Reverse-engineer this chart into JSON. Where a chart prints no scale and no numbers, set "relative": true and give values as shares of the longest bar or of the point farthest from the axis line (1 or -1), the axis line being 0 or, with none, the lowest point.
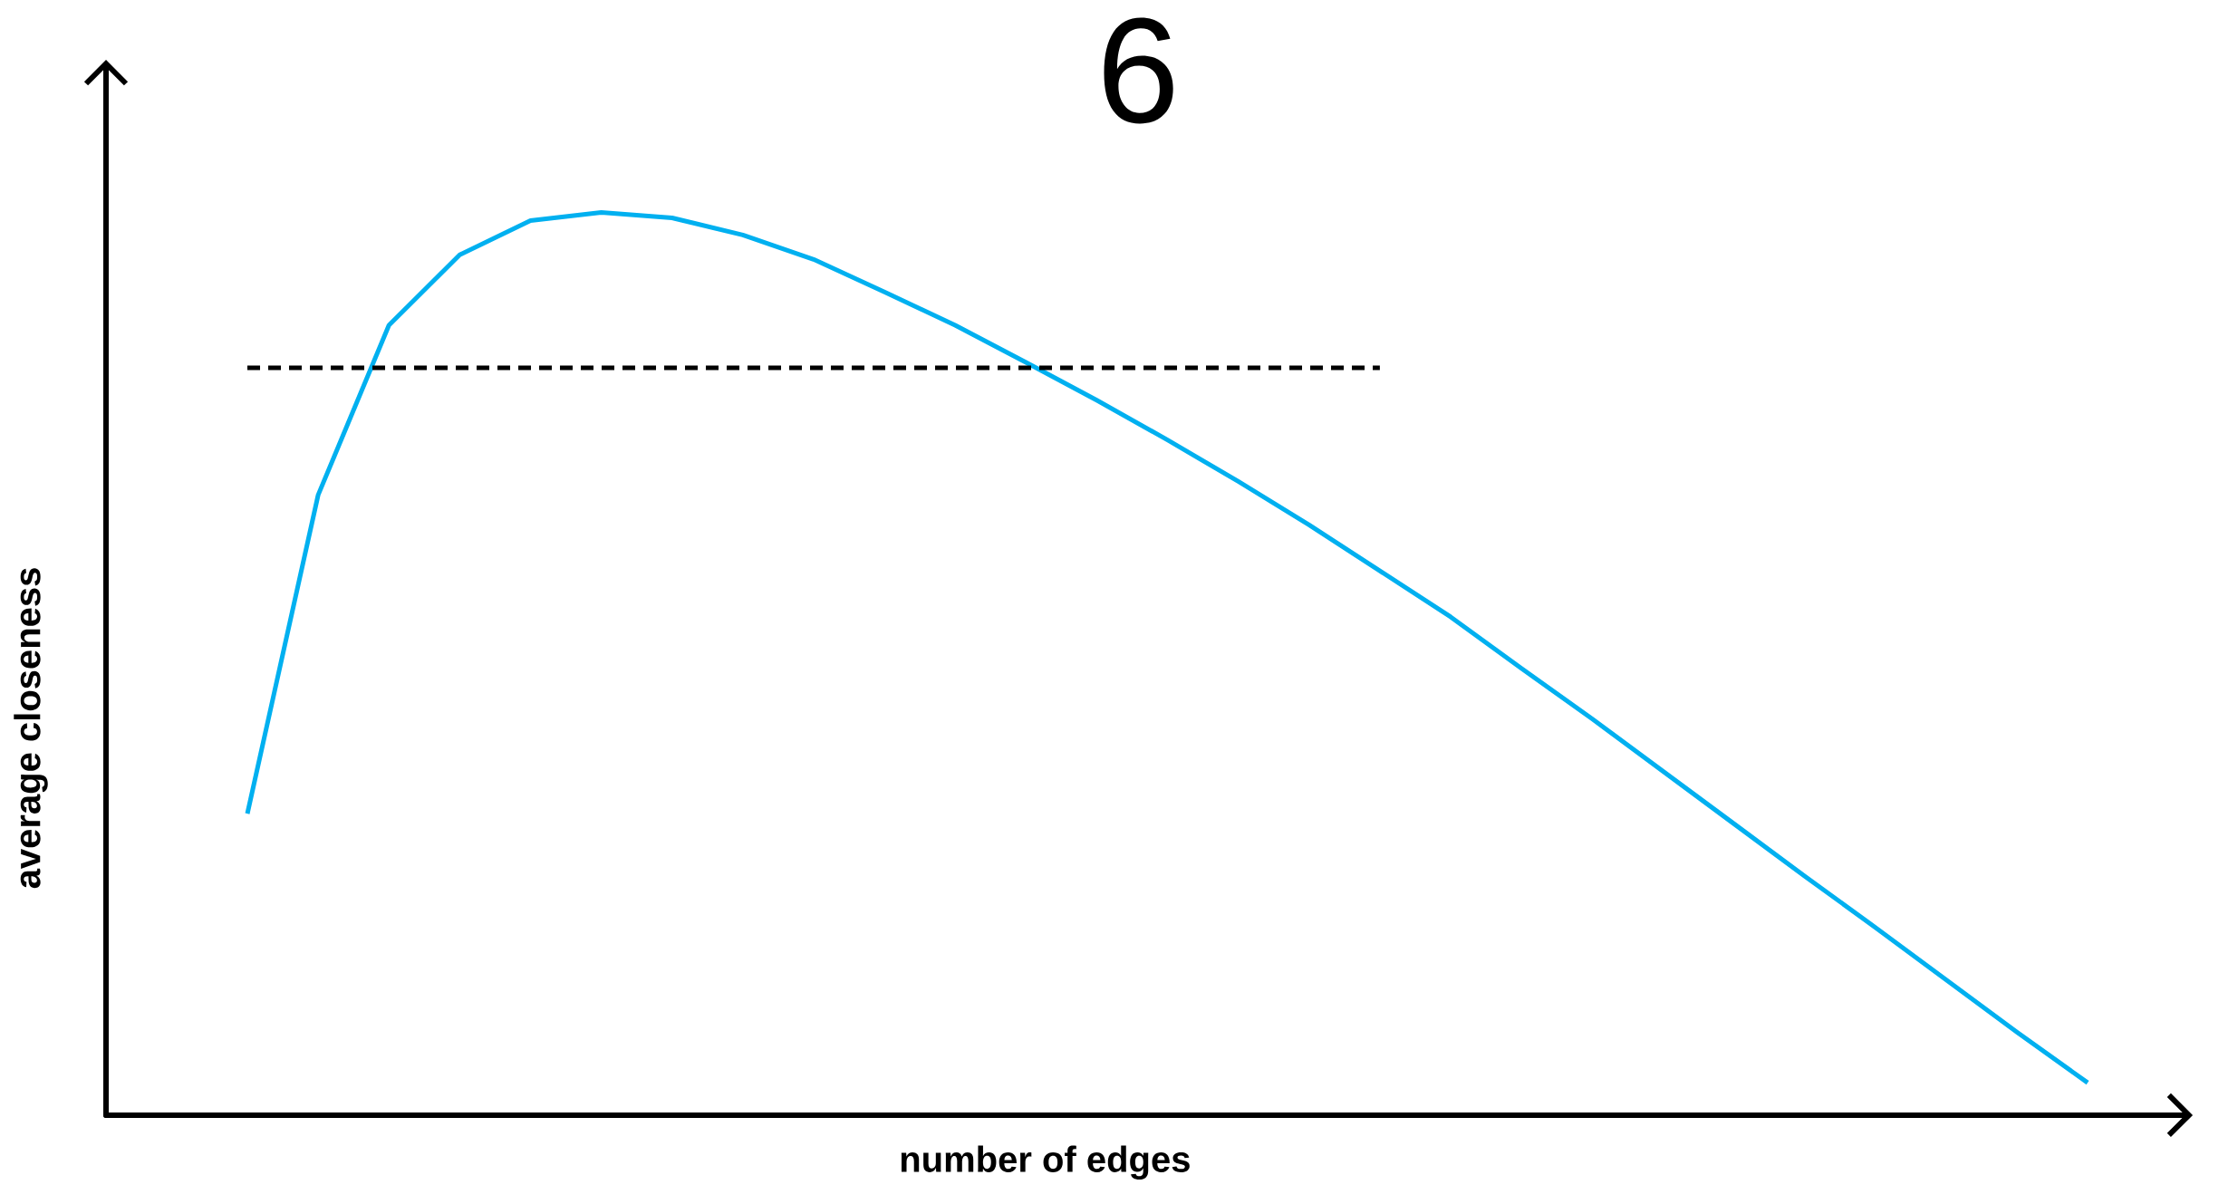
{
  "chart_data": {
    "type": "line",
    "title": "6",
    "xlabel": "number of edges",
    "ylabel": "average closeness",
    "relative": true,
    "categories": [
      null,
      null,
      null,
      null,
      null,
      null,
      null,
      null,
      null,
      null,
      null,
      null,
      null,
      null,
      null,
      null,
      null,
      null,
      null,
      null,
      null,
      null,
      null,
      null,
      null,
      null,
      null
    ],
    "series": [
      {
        "color": "#00b0f0",
        "line_style": "solid",
        "values": [
          0.334,
          0.687,
          0.875,
          0.953,
          0.991,
          1,
          0.994,
          0.975,
          0.948,
          0.912,
          0.875,
          0.834,
          0.792,
          0.748,
          0.702,
          0.654,
          0.603,
          0.552,
          0.495,
          0.439,
          0.381,
          0.323,
          0.265,
          0.208,
          0.15,
          0.092,
          0.036
        ]
      },
      {
        "color": "#000000",
        "line_style": "dashed",
        "values": [
          0.828,
          0.828,
          0.828,
          0.828,
          0.828,
          0.828,
          0.828,
          0.828,
          0.828,
          0.828,
          0.828,
          0.828,
          0.828,
          0.828,
          0.828,
          0.828,
          0.828,
          null,
          null,
          null,
          null,
          null,
          null,
          null,
          null,
          null,
          null
        ]
      }
    ]
  }
}
